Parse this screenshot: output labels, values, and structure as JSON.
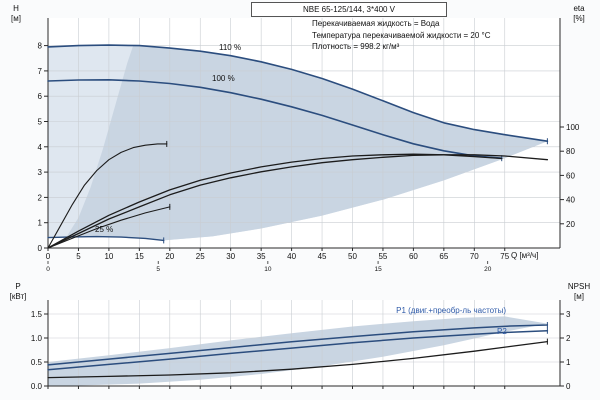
{
  "title": "NBE 65-125/144, 3*400 V",
  "info": {
    "liquid": "Перекачиваемая жидкость = Вода",
    "temperature": "Температура перекачиваемой жидкости = 20 °C",
    "density": "Плотность = 998.2 кг/м³"
  },
  "axes": {
    "top_left": {
      "title": "H",
      "unit": "[м]"
    },
    "top_right": {
      "title": "eta",
      "unit": "[%]"
    },
    "bottom_left": {
      "title": "P",
      "unit": "[кВт]"
    },
    "bottom_right": {
      "title": "NPSH",
      "unit": "[м]"
    },
    "x_unit": "Q [м³/ч]"
  },
  "colors": {
    "curve_blue": "#2b4d7e",
    "curve_black": "#1c1c1c",
    "band_light": "#dfe7f0",
    "band_dark": "#c9d5e2",
    "grid": "#c9cdd2",
    "axis": "#2a2a2a",
    "label_blue": "#2e5aa8",
    "plot_bg": "#ffffff"
  },
  "chart_data": [
    {
      "type": "line",
      "title": "NBE 65-125/144, 3*400 V",
      "xlabel": "Q [м³/ч]",
      "ylabel_left": "H [м]",
      "ylabel_right": "eta [%]",
      "xlim": [
        0,
        84
      ],
      "ylim_left": [
        0,
        9.1
      ],
      "ylim_right": [
        0,
        100
      ],
      "grid": true,
      "x_ticks": [
        0,
        5,
        10,
        15,
        20,
        25,
        30,
        35,
        40,
        45,
        50,
        55,
        60,
        65,
        70,
        75
      ],
      "x_secondary_ticks": {
        "values": [
          0,
          5,
          10,
          15,
          20
        ],
        "q_positions": [
          0,
          18.1,
          36.1,
          54.2,
          72.2
        ]
      },
      "y_ticks_left": [
        0,
        1,
        2,
        3,
        4,
        5,
        6,
        7,
        8
      ],
      "y_left_decimals": 0,
      "y_ticks_right": [
        20,
        40,
        60,
        80,
        100
      ],
      "bands": [
        {
          "name": "operating-envelope-outer",
          "tone": "band_light",
          "points": [
            [
              0,
              0.41
            ],
            [
              0,
              7.95
            ],
            [
              5,
              8.0
            ],
            [
              10,
              8.02
            ],
            [
              15,
              8.0
            ],
            [
              20,
              7.9
            ],
            [
              25,
              7.78
            ],
            [
              30,
              7.6
            ],
            [
              35,
              7.36
            ],
            [
              40,
              7.06
            ],
            [
              45,
              6.7
            ],
            [
              50,
              6.28
            ],
            [
              55,
              5.82
            ],
            [
              60,
              5.35
            ],
            [
              65,
              4.95
            ],
            [
              70,
              4.68
            ],
            [
              75,
              4.48
            ],
            [
              82,
              4.22
            ],
            [
              75,
              3.55
            ],
            [
              65,
              2.67
            ],
            [
              55,
              1.91
            ],
            [
              45,
              1.28
            ],
            [
              35,
              0.77
            ],
            [
              27,
              0.46
            ],
            [
              19,
              0.3
            ],
            [
              16,
              0.38
            ],
            [
              12,
              0.43
            ],
            [
              8,
              0.45
            ],
            [
              4,
              0.44
            ]
          ]
        },
        {
          "name": "operating-envelope-inner",
          "tone": "band_dark",
          "points": [
            [
              3,
              0.43
            ],
            [
              5,
              1.2
            ],
            [
              7,
              2.4
            ],
            [
              9,
              3.9
            ],
            [
              11,
              5.6
            ],
            [
              13,
              7.3
            ],
            [
              14,
              8.01
            ],
            [
              15,
              8.0
            ],
            [
              20,
              7.9
            ],
            [
              25,
              7.78
            ],
            [
              30,
              7.6
            ],
            [
              35,
              7.36
            ],
            [
              40,
              7.06
            ],
            [
              45,
              6.7
            ],
            [
              50,
              6.28
            ],
            [
              55,
              5.82
            ],
            [
              60,
              5.35
            ],
            [
              65,
              4.95
            ],
            [
              70,
              4.68
            ],
            [
              75,
              4.48
            ],
            [
              82,
              4.22
            ],
            [
              75,
              3.55
            ],
            [
              65,
              2.67
            ],
            [
              55,
              1.91
            ],
            [
              45,
              1.28
            ],
            [
              35,
              0.77
            ],
            [
              27,
              0.46
            ],
            [
              19,
              0.3
            ],
            [
              16,
              0.38
            ],
            [
              12,
              0.43
            ],
            [
              8,
              0.45
            ],
            [
              4,
              0.44
            ]
          ]
        }
      ],
      "series": [
        {
          "name": "qh-110",
          "label": "110 %",
          "color": "blue",
          "axis": "left",
          "w": 1.6,
          "end_tick": true,
          "points": [
            [
              0,
              7.95
            ],
            [
              5,
              8.0
            ],
            [
              10,
              8.02
            ],
            [
              15,
              8.0
            ],
            [
              20,
              7.9
            ],
            [
              25,
              7.78
            ],
            [
              30,
              7.6
            ],
            [
              35,
              7.36
            ],
            [
              40,
              7.06
            ],
            [
              45,
              6.7
            ],
            [
              50,
              6.28
            ],
            [
              55,
              5.82
            ],
            [
              60,
              5.35
            ],
            [
              65,
              4.95
            ],
            [
              70,
              4.68
            ],
            [
              75,
              4.48
            ],
            [
              82,
              4.22
            ]
          ]
        },
        {
          "name": "qh-100",
          "label": "100 %",
          "color": "blue",
          "axis": "left",
          "w": 1.6,
          "end_tick": true,
          "points": [
            [
              0,
              6.6
            ],
            [
              5,
              6.64
            ],
            [
              10,
              6.65
            ],
            [
              15,
              6.6
            ],
            [
              20,
              6.5
            ],
            [
              25,
              6.35
            ],
            [
              30,
              6.14
            ],
            [
              35,
              5.88
            ],
            [
              40,
              5.58
            ],
            [
              45,
              5.24
            ],
            [
              50,
              4.86
            ],
            [
              55,
              4.48
            ],
            [
              60,
              4.12
            ],
            [
              65,
              3.84
            ],
            [
              70,
              3.64
            ],
            [
              74.5,
              3.55
            ]
          ]
        },
        {
          "name": "qh-25",
          "label": "25 %",
          "color": "blue",
          "axis": "left",
          "w": 1.4,
          "end_tick": true,
          "points": [
            [
              0,
              0.41
            ],
            [
              4,
              0.44
            ],
            [
              8,
              0.45
            ],
            [
              12,
              0.43
            ],
            [
              16,
              0.38
            ],
            [
              19,
              0.3
            ]
          ]
        },
        {
          "name": "eta-110",
          "color": "black",
          "axis": "right",
          "w": 1.3,
          "points": [
            [
              0,
              0
            ],
            [
              5,
              12
            ],
            [
              10,
              24
            ],
            [
              15,
              34
            ],
            [
              20,
              44
            ],
            [
              25,
              52
            ],
            [
              30,
              58
            ],
            [
              35,
              63
            ],
            [
              40,
              67
            ],
            [
              45,
              70.5
            ],
            [
              50,
              73
            ],
            [
              55,
              75
            ],
            [
              60,
              76.5
            ],
            [
              65,
              77
            ],
            [
              70,
              77
            ],
            [
              75,
              76
            ],
            [
              82,
              73
            ]
          ]
        },
        {
          "name": "eta-100",
          "color": "black",
          "axis": "right",
          "w": 1.3,
          "points": [
            [
              0,
              0
            ],
            [
              5,
              14
            ],
            [
              10,
              27
            ],
            [
              15,
              38
            ],
            [
              20,
              48
            ],
            [
              25,
              56
            ],
            [
              30,
              62
            ],
            [
              35,
              67
            ],
            [
              40,
              71
            ],
            [
              45,
              74
            ],
            [
              50,
              76
            ],
            [
              55,
              77
            ],
            [
              60,
              77.5
            ],
            [
              65,
              77
            ],
            [
              70,
              75.5
            ],
            [
              74.5,
              74
            ]
          ]
        },
        {
          "name": "eta-25",
          "color": "black",
          "axis": "right",
          "w": 1.1,
          "end_tick": true,
          "points": [
            [
              0,
              0
            ],
            [
              2,
              18
            ],
            [
              4,
              36
            ],
            [
              6,
              52
            ],
            [
              8,
              64
            ],
            [
              10,
              73
            ],
            [
              12,
              79
            ],
            [
              14,
              83
            ],
            [
              16,
              85
            ],
            [
              18,
              86
            ],
            [
              19.5,
              86
            ]
          ]
        },
        {
          "name": "eta-total-25",
          "color": "black",
          "axis": "right",
          "w": 1.1,
          "end_tick": true,
          "points": [
            [
              0,
              0
            ],
            [
              4,
              8
            ],
            [
              8,
              16
            ],
            [
              12,
              23
            ],
            [
              16,
              29
            ],
            [
              20,
              34
            ]
          ]
        }
      ]
    },
    {
      "type": "line",
      "ylabel_left": "P [кВт]",
      "ylabel_right": "NPSH [м]",
      "xlim": [
        0,
        84
      ],
      "ylim_left": [
        0,
        1.8
      ],
      "ylim_right": [
        0,
        3.6
      ],
      "grid": true,
      "x_ticks": [
        0,
        5,
        10,
        15,
        20,
        25,
        30,
        35,
        40,
        45,
        50,
        55,
        60,
        65,
        70,
        75
      ],
      "y_ticks_left": [
        0,
        0.5,
        1,
        1.5
      ],
      "y_left_decimals": 1,
      "y_ticks_right": [
        0,
        1,
        2,
        3
      ],
      "bands": [
        {
          "name": "power-envelope",
          "tone": "band_dark",
          "points": [
            [
              0,
              0.0
            ],
            [
              0,
              0.5
            ],
            [
              10,
              0.64
            ],
            [
              20,
              0.79
            ],
            [
              30,
              0.95
            ],
            [
              40,
              1.1
            ],
            [
              50,
              1.24
            ],
            [
              60,
              1.35
            ],
            [
              68,
              1.42
            ],
            [
              75,
              1.45
            ],
            [
              82,
              1.3
            ],
            [
              75,
              1.13
            ],
            [
              65,
              0.85
            ],
            [
              55,
              0.61
            ],
            [
              45,
              0.41
            ],
            [
              35,
              0.25
            ],
            [
              25,
              0.13
            ],
            [
              15,
              0.05
            ],
            [
              5,
              0.01
            ]
          ]
        }
      ],
      "series": [
        {
          "name": "p1",
          "label": "P1 (двиг.+преобр-ль частоты)",
          "color": "blue",
          "axis": "left",
          "w": 1.5,
          "end_tick": true,
          "points": [
            [
              0,
              0.44
            ],
            [
              10,
              0.56
            ],
            [
              20,
              0.68
            ],
            [
              30,
              0.8
            ],
            [
              40,
              0.92
            ],
            [
              50,
              1.03
            ],
            [
              60,
              1.13
            ],
            [
              70,
              1.21
            ],
            [
              76,
              1.25
            ],
            [
              82,
              1.27
            ]
          ]
        },
        {
          "name": "p2",
          "label": "P2",
          "color": "blue",
          "axis": "left",
          "w": 1.5,
          "end_tick": true,
          "points": [
            [
              0,
              0.34
            ],
            [
              10,
              0.45
            ],
            [
              20,
              0.56
            ],
            [
              30,
              0.68
            ],
            [
              40,
              0.79
            ],
            [
              50,
              0.9
            ],
            [
              60,
              1.0
            ],
            [
              70,
              1.08
            ],
            [
              76,
              1.12
            ],
            [
              82,
              1.15
            ]
          ]
        },
        {
          "name": "npsh",
          "color": "black",
          "axis": "right",
          "w": 1.3,
          "end_tick": true,
          "points": [
            [
              0,
              0.35
            ],
            [
              10,
              0.4
            ],
            [
              20,
              0.46
            ],
            [
              30,
              0.55
            ],
            [
              40,
              0.7
            ],
            [
              50,
              0.9
            ],
            [
              60,
              1.15
            ],
            [
              70,
              1.45
            ],
            [
              76,
              1.65
            ],
            [
              82,
              1.85
            ]
          ]
        }
      ]
    }
  ]
}
